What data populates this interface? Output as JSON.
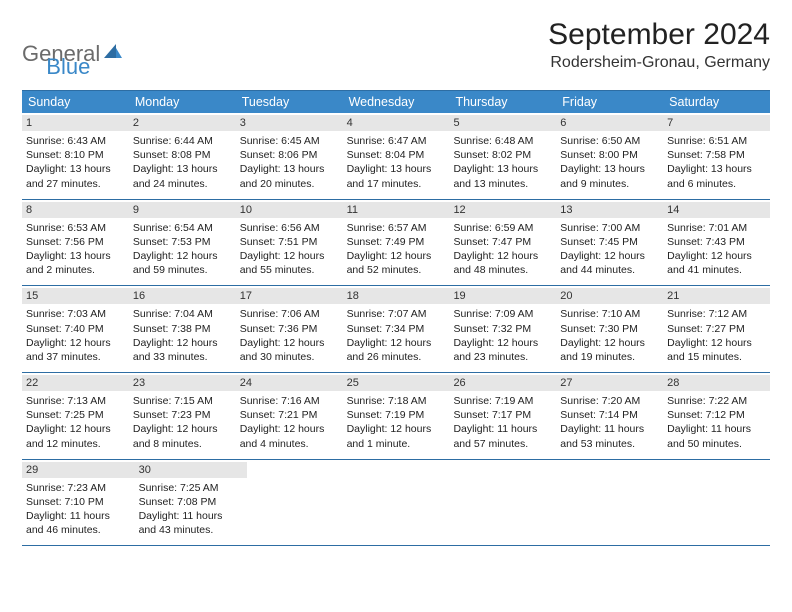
{
  "logo": {
    "gen": "General",
    "blue": "Blue"
  },
  "title": "September 2024",
  "location": "Rodersheim-Gronau, Germany",
  "colors": {
    "header_bg": "#3a88c8",
    "header_text": "#ffffff",
    "rule": "#2d6da3",
    "daynum_bg": "#e6e6e6",
    "text": "#222222",
    "logo_gray": "#6b6b6b",
    "logo_blue": "#3a88c8"
  },
  "weekdays": [
    "Sunday",
    "Monday",
    "Tuesday",
    "Wednesday",
    "Thursday",
    "Friday",
    "Saturday"
  ],
  "weeks": [
    [
      {
        "n": "1",
        "sr": "Sunrise: 6:43 AM",
        "ss": "Sunset: 8:10 PM",
        "d1": "Daylight: 13 hours",
        "d2": "and 27 minutes."
      },
      {
        "n": "2",
        "sr": "Sunrise: 6:44 AM",
        "ss": "Sunset: 8:08 PM",
        "d1": "Daylight: 13 hours",
        "d2": "and 24 minutes."
      },
      {
        "n": "3",
        "sr": "Sunrise: 6:45 AM",
        "ss": "Sunset: 8:06 PM",
        "d1": "Daylight: 13 hours",
        "d2": "and 20 minutes."
      },
      {
        "n": "4",
        "sr": "Sunrise: 6:47 AM",
        "ss": "Sunset: 8:04 PM",
        "d1": "Daylight: 13 hours",
        "d2": "and 17 minutes."
      },
      {
        "n": "5",
        "sr": "Sunrise: 6:48 AM",
        "ss": "Sunset: 8:02 PM",
        "d1": "Daylight: 13 hours",
        "d2": "and 13 minutes."
      },
      {
        "n": "6",
        "sr": "Sunrise: 6:50 AM",
        "ss": "Sunset: 8:00 PM",
        "d1": "Daylight: 13 hours",
        "d2": "and 9 minutes."
      },
      {
        "n": "7",
        "sr": "Sunrise: 6:51 AM",
        "ss": "Sunset: 7:58 PM",
        "d1": "Daylight: 13 hours",
        "d2": "and 6 minutes."
      }
    ],
    [
      {
        "n": "8",
        "sr": "Sunrise: 6:53 AM",
        "ss": "Sunset: 7:56 PM",
        "d1": "Daylight: 13 hours",
        "d2": "and 2 minutes."
      },
      {
        "n": "9",
        "sr": "Sunrise: 6:54 AM",
        "ss": "Sunset: 7:53 PM",
        "d1": "Daylight: 12 hours",
        "d2": "and 59 minutes."
      },
      {
        "n": "10",
        "sr": "Sunrise: 6:56 AM",
        "ss": "Sunset: 7:51 PM",
        "d1": "Daylight: 12 hours",
        "d2": "and 55 minutes."
      },
      {
        "n": "11",
        "sr": "Sunrise: 6:57 AM",
        "ss": "Sunset: 7:49 PM",
        "d1": "Daylight: 12 hours",
        "d2": "and 52 minutes."
      },
      {
        "n": "12",
        "sr": "Sunrise: 6:59 AM",
        "ss": "Sunset: 7:47 PM",
        "d1": "Daylight: 12 hours",
        "d2": "and 48 minutes."
      },
      {
        "n": "13",
        "sr": "Sunrise: 7:00 AM",
        "ss": "Sunset: 7:45 PM",
        "d1": "Daylight: 12 hours",
        "d2": "and 44 minutes."
      },
      {
        "n": "14",
        "sr": "Sunrise: 7:01 AM",
        "ss": "Sunset: 7:43 PM",
        "d1": "Daylight: 12 hours",
        "d2": "and 41 minutes."
      }
    ],
    [
      {
        "n": "15",
        "sr": "Sunrise: 7:03 AM",
        "ss": "Sunset: 7:40 PM",
        "d1": "Daylight: 12 hours",
        "d2": "and 37 minutes."
      },
      {
        "n": "16",
        "sr": "Sunrise: 7:04 AM",
        "ss": "Sunset: 7:38 PM",
        "d1": "Daylight: 12 hours",
        "d2": "and 33 minutes."
      },
      {
        "n": "17",
        "sr": "Sunrise: 7:06 AM",
        "ss": "Sunset: 7:36 PM",
        "d1": "Daylight: 12 hours",
        "d2": "and 30 minutes."
      },
      {
        "n": "18",
        "sr": "Sunrise: 7:07 AM",
        "ss": "Sunset: 7:34 PM",
        "d1": "Daylight: 12 hours",
        "d2": "and 26 minutes."
      },
      {
        "n": "19",
        "sr": "Sunrise: 7:09 AM",
        "ss": "Sunset: 7:32 PM",
        "d1": "Daylight: 12 hours",
        "d2": "and 23 minutes."
      },
      {
        "n": "20",
        "sr": "Sunrise: 7:10 AM",
        "ss": "Sunset: 7:30 PM",
        "d1": "Daylight: 12 hours",
        "d2": "and 19 minutes."
      },
      {
        "n": "21",
        "sr": "Sunrise: 7:12 AM",
        "ss": "Sunset: 7:27 PM",
        "d1": "Daylight: 12 hours",
        "d2": "and 15 minutes."
      }
    ],
    [
      {
        "n": "22",
        "sr": "Sunrise: 7:13 AM",
        "ss": "Sunset: 7:25 PM",
        "d1": "Daylight: 12 hours",
        "d2": "and 12 minutes."
      },
      {
        "n": "23",
        "sr": "Sunrise: 7:15 AM",
        "ss": "Sunset: 7:23 PM",
        "d1": "Daylight: 12 hours",
        "d2": "and 8 minutes."
      },
      {
        "n": "24",
        "sr": "Sunrise: 7:16 AM",
        "ss": "Sunset: 7:21 PM",
        "d1": "Daylight: 12 hours",
        "d2": "and 4 minutes."
      },
      {
        "n": "25",
        "sr": "Sunrise: 7:18 AM",
        "ss": "Sunset: 7:19 PM",
        "d1": "Daylight: 12 hours",
        "d2": "and 1 minute."
      },
      {
        "n": "26",
        "sr": "Sunrise: 7:19 AM",
        "ss": "Sunset: 7:17 PM",
        "d1": "Daylight: 11 hours",
        "d2": "and 57 minutes."
      },
      {
        "n": "27",
        "sr": "Sunrise: 7:20 AM",
        "ss": "Sunset: 7:14 PM",
        "d1": "Daylight: 11 hours",
        "d2": "and 53 minutes."
      },
      {
        "n": "28",
        "sr": "Sunrise: 7:22 AM",
        "ss": "Sunset: 7:12 PM",
        "d1": "Daylight: 11 hours",
        "d2": "and 50 minutes."
      }
    ],
    [
      {
        "n": "29",
        "sr": "Sunrise: 7:23 AM",
        "ss": "Sunset: 7:10 PM",
        "d1": "Daylight: 11 hours",
        "d2": "and 46 minutes."
      },
      {
        "n": "30",
        "sr": "Sunrise: 7:25 AM",
        "ss": "Sunset: 7:08 PM",
        "d1": "Daylight: 11 hours",
        "d2": "and 43 minutes."
      },
      null,
      null,
      null,
      null,
      null
    ]
  ]
}
